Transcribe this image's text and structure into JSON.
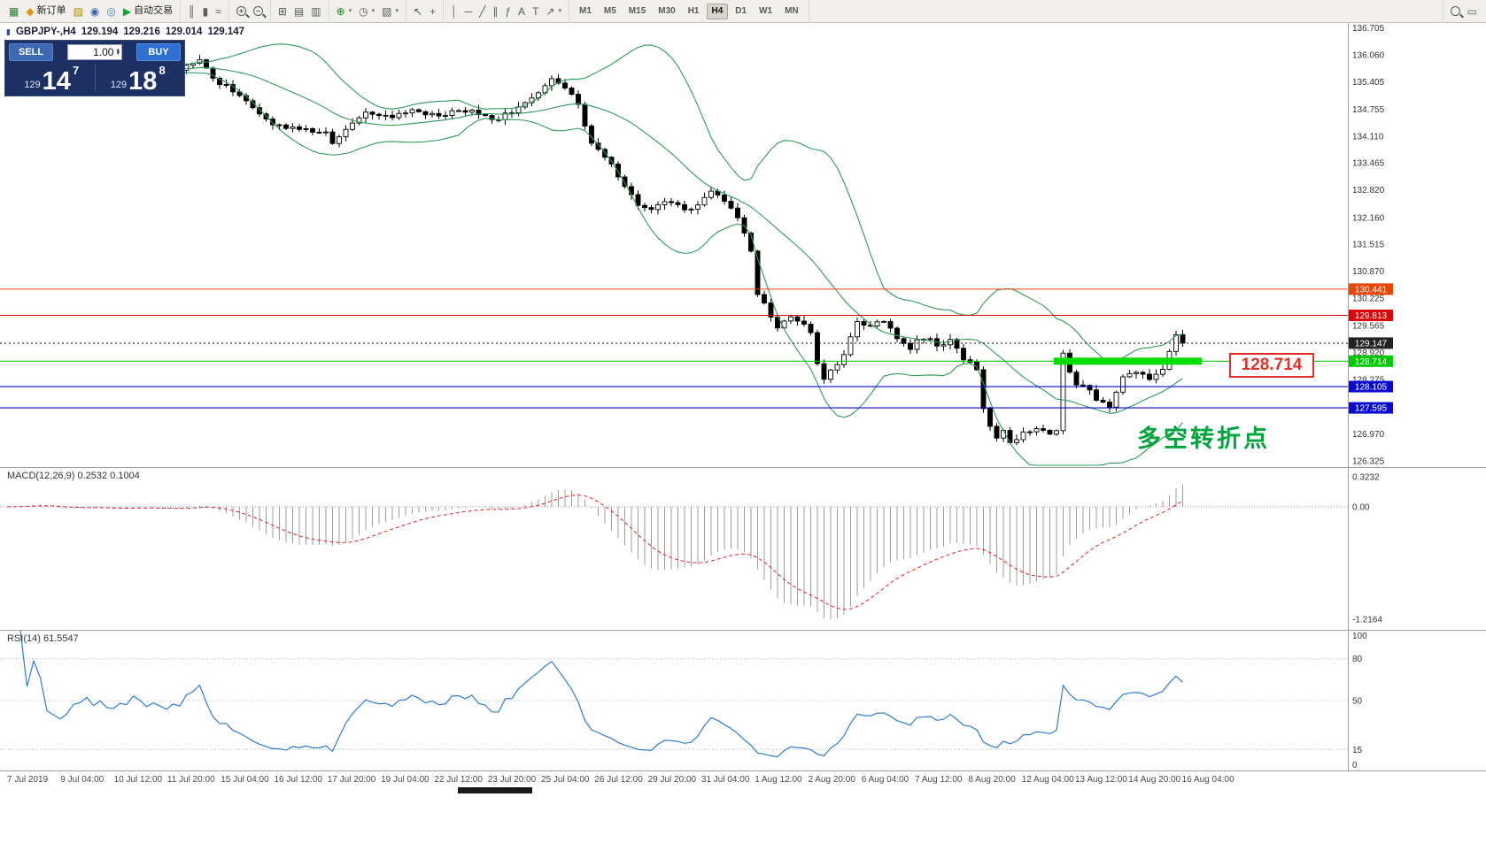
{
  "toolbar": {
    "timeframes": [
      "M1",
      "M5",
      "M15",
      "M30",
      "H1",
      "H4",
      "D1",
      "W1",
      "MN"
    ],
    "active_timeframe": "H4",
    "groups": [
      {
        "type": "icons",
        "items": [
          {
            "name": "new-chart-icon",
            "glyph": "▦",
            "color": "#2e7d32"
          },
          {
            "name": "new-order-button",
            "glyph": "◆",
            "color": "#d99a06",
            "label": "新订单"
          },
          {
            "name": "profiles-icon",
            "glyph": "▨",
            "color": "#b08c00"
          },
          {
            "name": "market-watch-icon",
            "glyph": "◉",
            "color": "#3565b0"
          },
          {
            "name": "navigator-icon",
            "glyph": "◎",
            "color": "#3587b0"
          },
          {
            "name": "autotrade-button",
            "glyph": "▶",
            "color": "#14a83c",
            "label": "自动交易"
          }
        ]
      },
      {
        "type": "icons",
        "items": [
          {
            "name": "bar-chart-type-icon",
            "glyph": "║"
          },
          {
            "name": "candlestick-chart-type-icon",
            "glyph": "▮"
          },
          {
            "name": "line-chart-type-icon",
            "glyph": "≈"
          }
        ]
      },
      {
        "type": "icons",
        "items": [
          {
            "name": "zoom-in-icon",
            "shape": "magnifier",
            "glyph": "+"
          },
          {
            "name": "zoom-out-icon",
            "shape": "magnifier",
            "glyph": "−"
          }
        ]
      },
      {
        "type": "icons",
        "items": [
          {
            "name": "grid-icon",
            "glyph": "⊞"
          },
          {
            "name": "tile-windows-icon",
            "glyph": "▤"
          },
          {
            "name": "cascade-windows-icon",
            "glyph": "▥"
          }
        ]
      },
      {
        "type": "icons",
        "items": [
          {
            "name": "indicators-icon",
            "glyph": "⊕",
            "color": "#188a18",
            "caret": true
          },
          {
            "name": "periods-icon",
            "glyph": "◷",
            "caret": true
          },
          {
            "name": "templates-icon",
            "glyph": "▧",
            "caret": true
          }
        ]
      },
      {
        "type": "icons",
        "items": [
          {
            "name": "cursor-icon",
            "glyph": "↖"
          },
          {
            "name": "crosshair-icon",
            "glyph": "+"
          }
        ]
      },
      {
        "type": "icons",
        "items": [
          {
            "name": "vertical-line-icon",
            "glyph": "│"
          },
          {
            "name": "horizontal-line-icon",
            "glyph": "─"
          },
          {
            "name": "trendline-icon",
            "glyph": "╱"
          },
          {
            "name": "equidistant-channel-icon",
            "glyph": "∥"
          },
          {
            "name": "fibonacci-icon",
            "glyph": "ƒ"
          },
          {
            "name": "text-icon",
            "glyph": "A"
          },
          {
            "name": "text-label-icon",
            "glyph": "T"
          },
          {
            "name": "arrows-icon",
            "glyph": "↗",
            "caret": true
          }
        ]
      },
      {
        "type": "timeframes"
      },
      {
        "type": "icons",
        "align": "right",
        "items": [
          {
            "name": "search-icon",
            "shape": "magnifier",
            "glyph": ""
          },
          {
            "name": "new-window-icon",
            "glyph": "▭"
          }
        ]
      }
    ]
  },
  "symbol_header": {
    "symbol": "GBPJPY-,H4",
    "open": "129.194",
    "high": "129.216",
    "low": "129.014",
    "close": "129.147"
  },
  "trade_panel": {
    "sell_label": "SELL",
    "buy_label": "BUY",
    "volume": "1.00",
    "bid": {
      "prefix": "129",
      "main": "14",
      "sup": "7"
    },
    "ask": {
      "prefix": "129",
      "main": "18",
      "sup": "8"
    }
  },
  "price_axis_labels": [
    "136.705",
    "136.060",
    "135.405",
    "134.755",
    "134.110",
    "133.465",
    "132.820",
    "132.160",
    "131.515",
    "130.870",
    "130.225",
    "129.565",
    "128.920",
    "128.275",
    "126.970",
    "126.325"
  ],
  "time_axis_labels": [
    "7 Jul 2019",
    "9 Jul 04:00",
    "10 Jul 12:00",
    "11 Jul 20:00",
    "15 Jul 04:00",
    "16 Jul 12:00",
    "17 Jul 20:00",
    "19 Jul 04:00",
    "22 Jul 12:00",
    "23 Jul 20:00",
    "25 Jul 04:00",
    "26 Jul 12:00",
    "29 Jul 20:00",
    "31 Jul 04:00",
    "1 Aug 12:00",
    "2 Aug 20:00",
    "6 Aug 04:00",
    "7 Aug 12:00",
    "8 Aug 20:00",
    "12 Aug 04:00",
    "13 Aug 12:00",
    "14 Aug 20:00",
    "16 Aug 04:00"
  ],
  "levels": [
    {
      "label": "130.441",
      "price": 130.441,
      "color": "#e8470a",
      "style": "solid"
    },
    {
      "label": "129.813",
      "price": 129.813,
      "color": "#dc0508",
      "style": "solid"
    },
    {
      "label": "129.147",
      "price": 129.147,
      "color": "#222222",
      "style": "dotted",
      "role": "current-price"
    },
    {
      "label": "128.714",
      "price": 128.714,
      "color": "#00ca00",
      "style": "solid",
      "role": "support"
    },
    {
      "label": "128.105",
      "price": 128.105,
      "color": "#0b0bd0",
      "style": "solid"
    },
    {
      "label": "127.595",
      "price": 127.595,
      "color": "#0b0bd0",
      "style": "solid"
    }
  ],
  "support_zone": {
    "label": "128.714"
  },
  "annotation": {
    "text": "多空转折点",
    "color": "#00a33c"
  },
  "macd": {
    "title": "MACD(12,26,9) 0.2532 0.1004",
    "axis_labels": [
      {
        "text": "0.3232",
        "value": 0.3232
      },
      {
        "text": "0.00",
        "value": 0
      },
      {
        "text": "-1.2164",
        "value": -1.2164
      }
    ]
  },
  "rsi": {
    "title": "RSI(14) 61.5547",
    "axis_labels": [
      {
        "text": "100",
        "value": 100
      },
      {
        "text": "80",
        "value": 80
      },
      {
        "text": "50",
        "value": 50
      },
      {
        "text": "15",
        "value": 15
      },
      {
        "text": "0",
        "value": 0
      }
    ],
    "levels": [
      80,
      50,
      15
    ]
  },
  "chart_data": {
    "type": "candlestick",
    "symbol": "GBPJPY",
    "timeframe": "H4",
    "bar_count": 178,
    "visible_price_range": [
      126.325,
      136.705
    ],
    "bollinger": {
      "period": 20,
      "deviation": 2,
      "color": "#2e9b57"
    },
    "macd_range": [
      -1.2164,
      0.3232
    ],
    "rsi_range": [
      0,
      100
    ],
    "close_keyframes": [
      [
        0,
        135.75
      ],
      [
        4,
        135.9
      ],
      [
        8,
        135.6
      ],
      [
        12,
        135.8
      ],
      [
        16,
        135.65
      ],
      [
        20,
        135.8
      ],
      [
        24,
        135.6
      ],
      [
        29,
        135.9
      ],
      [
        31,
        135.5
      ],
      [
        34,
        135.2
      ],
      [
        37,
        134.75
      ],
      [
        40,
        134.4
      ],
      [
        44,
        134.3
      ],
      [
        48,
        134.15
      ],
      [
        49,
        133.95
      ],
      [
        51,
        134.3
      ],
      [
        54,
        134.65
      ],
      [
        58,
        134.55
      ],
      [
        61,
        134.7
      ],
      [
        65,
        134.6
      ],
      [
        70,
        134.75
      ],
      [
        73,
        134.45
      ],
      [
        76,
        134.7
      ],
      [
        79,
        135.05
      ],
      [
        82,
        135.45
      ],
      [
        84,
        135.3
      ],
      [
        86,
        134.85
      ],
      [
        88,
        133.95
      ],
      [
        91,
        133.4
      ],
      [
        93,
        132.9
      ],
      [
        95,
        132.5
      ],
      [
        97,
        132.35
      ],
      [
        100,
        132.55
      ],
      [
        103,
        132.3
      ],
      [
        106,
        132.75
      ],
      [
        108,
        132.6
      ],
      [
        110,
        132.2
      ],
      [
        112,
        131.4
      ],
      [
        113,
        130.35
      ],
      [
        115,
        129.8
      ],
      [
        116,
        129.5
      ],
      [
        118,
        129.75
      ],
      [
        120,
        129.6
      ],
      [
        121,
        129.45
      ],
      [
        122,
        128.7
      ],
      [
        123,
        128.3
      ],
      [
        125,
        128.6
      ],
      [
        126,
        128.9
      ],
      [
        127,
        129.3
      ],
      [
        128,
        129.65
      ],
      [
        130,
        129.5
      ],
      [
        132,
        129.7
      ],
      [
        134,
        129.2
      ],
      [
        136,
        129.05
      ],
      [
        138,
        129.3
      ],
      [
        140,
        129.1
      ],
      [
        142,
        129.2
      ],
      [
        144,
        128.8
      ],
      [
        146,
        128.55
      ],
      [
        147,
        127.6
      ],
      [
        148,
        127.2
      ],
      [
        149,
        126.9
      ],
      [
        150,
        127.1
      ],
      [
        151,
        126.75
      ],
      [
        153,
        127.0
      ],
      [
        155,
        127.15
      ],
      [
        157,
        126.95
      ],
      [
        158,
        127.05
      ],
      [
        159,
        128.85
      ],
      [
        160,
        128.45
      ],
      [
        161,
        128.2
      ],
      [
        163,
        128.0
      ],
      [
        164,
        127.75
      ],
      [
        166,
        127.6
      ],
      [
        168,
        128.3
      ],
      [
        170,
        128.45
      ],
      [
        172,
        128.3
      ],
      [
        174,
        128.55
      ],
      [
        175,
        128.9
      ],
      [
        176,
        129.35
      ],
      [
        177,
        129.147
      ]
    ]
  }
}
